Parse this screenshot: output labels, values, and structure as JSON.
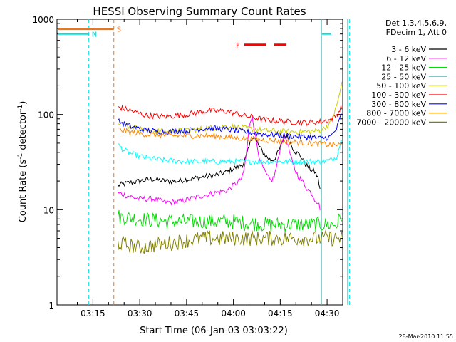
{
  "chart_data": {
    "type": "line",
    "title": "HESSI Observing Summary Count Rates",
    "xlabel": "Start Time (06-Jan-03 03:03:22)",
    "ylabel_main": "Count Rate (s",
    "ylabel_sup1": "-1",
    "ylabel_mid": " detector",
    "ylabel_sup2": "-1",
    "ylabel_end": ")",
    "y_scale": "log",
    "ylim": [
      1,
      1000
    ],
    "xlim_minutes": [
      3.5,
      95
    ],
    "x_ticks": [
      {
        "m": 15,
        "label": "03:15"
      },
      {
        "m": 30,
        "label": "03:30"
      },
      {
        "m": 45,
        "label": "03:45"
      },
      {
        "m": 60,
        "label": "04:00"
      },
      {
        "m": 75,
        "label": "04:15"
      },
      {
        "m": 90,
        "label": "04:30"
      }
    ],
    "y_ticks": [
      {
        "v": 1,
        "label": "1"
      },
      {
        "v": 10,
        "label": "10"
      },
      {
        "v": 100,
        "label": "100"
      },
      {
        "v": 1000,
        "label": "1000"
      }
    ],
    "legend": {
      "header1": "Det 1,3,4,5,6,9,",
      "header2": "FDecim 1, Att 0",
      "placement": "right"
    },
    "flags": {
      "N_label": "N",
      "S_label": "S",
      "F_label": "F"
    },
    "vlines": [
      {
        "m": 13.7,
        "color": "#00e0e0",
        "style": "dashed"
      },
      {
        "m": 21.7,
        "color": "#e87820",
        "style": "dashed"
      },
      {
        "m": 88.2,
        "color": "#00e0e0",
        "style": "solid"
      },
      {
        "m": 97.2,
        "color": "#00e0e0",
        "style": "dashed"
      },
      {
        "m": 96.6,
        "color": "#00b0b0",
        "style": "solid"
      }
    ],
    "series": [
      {
        "name": "3 - 6 keV",
        "color": "#000000",
        "x": [
          23,
          26,
          30,
          34,
          38,
          42,
          46,
          50,
          54,
          58,
          61,
          63,
          64,
          65,
          66,
          67,
          68,
          69,
          70,
          71,
          72,
          73,
          74,
          75,
          76,
          77,
          78,
          79,
          80,
          81,
          82,
          83,
          84,
          85,
          86,
          87,
          88
        ],
        "y": [
          18,
          19,
          20,
          21,
          20,
          20,
          21,
          22,
          23,
          25,
          28,
          30,
          35,
          45,
          60,
          55,
          48,
          42,
          38,
          35,
          33,
          34,
          38,
          45,
          55,
          60,
          52,
          45,
          40,
          38,
          35,
          30,
          28,
          26,
          25,
          22,
          15
        ]
      },
      {
        "name": "6 - 12 keV",
        "color": "#ff00ff",
        "x": [
          23,
          26,
          30,
          34,
          38,
          42,
          46,
          50,
          54,
          58,
          61,
          63,
          64,
          65,
          66,
          67,
          68,
          69,
          70,
          71,
          72,
          73,
          74,
          75,
          76,
          77,
          78,
          79,
          80,
          81,
          82,
          83,
          84,
          85,
          86,
          87,
          88
        ],
        "y": [
          15,
          14,
          13,
          13,
          12,
          12,
          13,
          14,
          15,
          16,
          19,
          22,
          35,
          70,
          100,
          60,
          40,
          30,
          25,
          22,
          20,
          22,
          30,
          45,
          60,
          55,
          40,
          30,
          25,
          22,
          20,
          18,
          16,
          15,
          13,
          12,
          10
        ]
      },
      {
        "name": "12 - 25 keV",
        "color": "#00dd00",
        "x": [
          23,
          30,
          40,
          50,
          60,
          70,
          80,
          88,
          93,
          95
        ],
        "y": [
          8.5,
          8,
          7.5,
          7.5,
          7.5,
          7,
          7,
          7,
          7,
          9
        ]
      },
      {
        "name": "25 - 50 keV",
        "color": "#00ffff",
        "x": [
          23,
          25,
          28,
          32,
          38,
          45,
          55,
          65,
          75,
          85,
          88,
          91,
          93,
          95
        ],
        "y": [
          48,
          42,
          38,
          35,
          33,
          32,
          32,
          32,
          32,
          32,
          32,
          33,
          36,
          60
        ]
      },
      {
        "name": "50 - 100 keV",
        "color": "#cccc00",
        "x": [
          23,
          27,
          32,
          38,
          45,
          52,
          58,
          63,
          70,
          77,
          84,
          88,
          91,
          93,
          95
        ],
        "y": [
          85,
          75,
          68,
          66,
          68,
          72,
          75,
          72,
          68,
          66,
          66,
          68,
          80,
          120,
          230
        ]
      },
      {
        "name": "100 - 300 keV",
        "color": "#ff0000",
        "x": [
          23,
          27,
          32,
          38,
          45,
          52,
          58,
          63,
          70,
          77,
          84,
          88,
          91,
          93,
          95
        ],
        "y": [
          120,
          110,
          98,
          95,
          100,
          110,
          108,
          98,
          88,
          84,
          82,
          84,
          88,
          98,
          125
        ]
      },
      {
        "name": "300 - 800 keV",
        "color": "#0000ff",
        "x": [
          23,
          27,
          32,
          38,
          45,
          52,
          58,
          63,
          70,
          77,
          84,
          88,
          91,
          93,
          95
        ],
        "y": [
          85,
          75,
          68,
          66,
          68,
          72,
          70,
          66,
          62,
          60,
          58,
          56,
          58,
          70,
          110
        ]
      },
      {
        "name": "800 - 7000 keV",
        "color": "#ff8800",
        "x": [
          23,
          27,
          32,
          38,
          45,
          52,
          58,
          63,
          70,
          77,
          84,
          88,
          91,
          93,
          95
        ],
        "y": [
          70,
          65,
          62,
          60,
          60,
          60,
          58,
          56,
          54,
          52,
          50,
          49,
          48,
          48,
          48
        ]
      },
      {
        "name": "7000 - 20000 keV",
        "color": "#808000",
        "x": [
          23,
          30,
          40,
          50,
          60,
          70,
          80,
          88,
          93,
          95
        ],
        "y": [
          4.5,
          4,
          4.5,
          5,
          5,
          5,
          5,
          5,
          5,
          5
        ]
      }
    ]
  },
  "timestamp": "28-Mar-2010 11:55"
}
